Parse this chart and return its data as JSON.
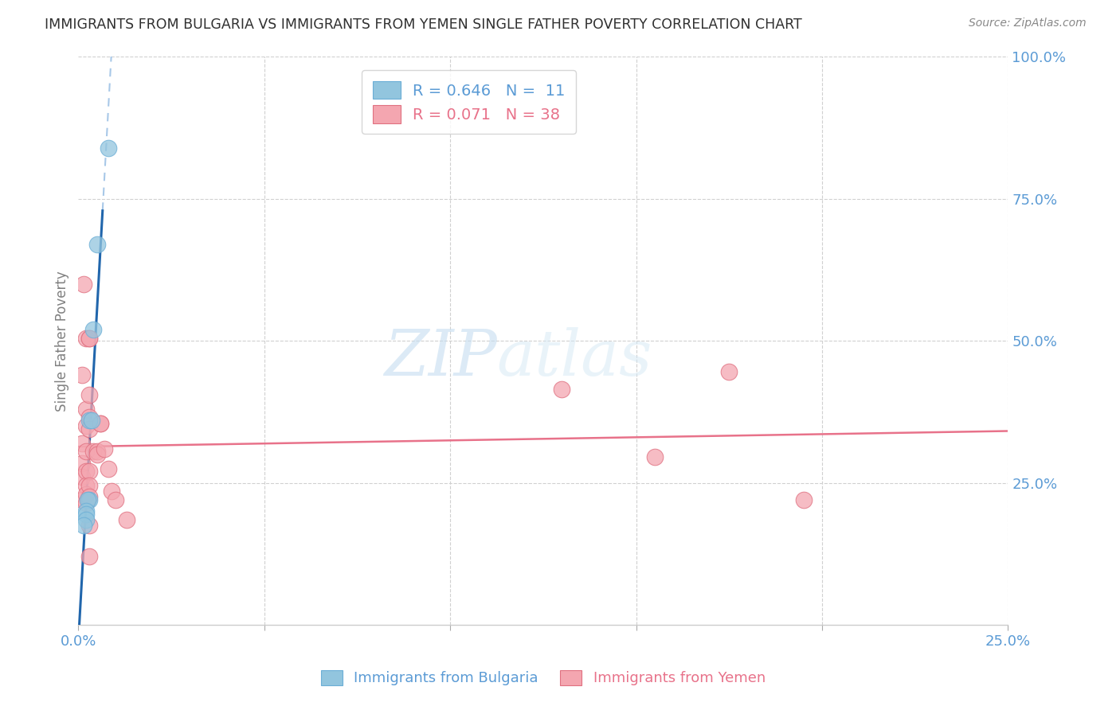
{
  "title": "IMMIGRANTS FROM BULGARIA VS IMMIGRANTS FROM YEMEN SINGLE FATHER POVERTY CORRELATION CHART",
  "source": "Source: ZipAtlas.com",
  "ylabel": "Single Father Poverty",
  "ylabel_right_labels": [
    "100.0%",
    "75.0%",
    "50.0%",
    "25.0%"
  ],
  "R_bulgaria": 0.646,
  "N_bulgaria": 11,
  "R_yemen": 0.071,
  "N_yemen": 38,
  "xlim": [
    0.0,
    0.25
  ],
  "ylim": [
    0.0,
    1.0
  ],
  "bulgaria_color": "#92c5de",
  "bulgaria_edge_color": "#6baed6",
  "yemen_color": "#f4a6b0",
  "yemen_edge_color": "#e07080",
  "bulgaria_line_color": "#2166ac",
  "yemen_line_color": "#e8728a",
  "bulgaria_dashed_color": "#a8c8e8",
  "bulgaria_scatter": [
    [
      0.008,
      0.84
    ],
    [
      0.005,
      0.67
    ],
    [
      0.004,
      0.52
    ],
    [
      0.003,
      0.36
    ],
    [
      0.0035,
      0.36
    ],
    [
      0.003,
      0.22
    ],
    [
      0.0025,
      0.22
    ],
    [
      0.002,
      0.2
    ],
    [
      0.002,
      0.195
    ],
    [
      0.002,
      0.185
    ],
    [
      0.0015,
      0.175
    ]
  ],
  "yemen_scatter": [
    [
      0.001,
      0.44
    ],
    [
      0.001,
      0.32
    ],
    [
      0.001,
      0.285
    ],
    [
      0.001,
      0.26
    ],
    [
      0.001,
      0.22
    ],
    [
      0.0015,
      0.6
    ],
    [
      0.002,
      0.505
    ],
    [
      0.002,
      0.38
    ],
    [
      0.002,
      0.35
    ],
    [
      0.002,
      0.305
    ],
    [
      0.002,
      0.27
    ],
    [
      0.002,
      0.245
    ],
    [
      0.002,
      0.23
    ],
    [
      0.002,
      0.215
    ],
    [
      0.003,
      0.505
    ],
    [
      0.003,
      0.505
    ],
    [
      0.003,
      0.405
    ],
    [
      0.003,
      0.365
    ],
    [
      0.003,
      0.345
    ],
    [
      0.003,
      0.27
    ],
    [
      0.003,
      0.245
    ],
    [
      0.003,
      0.225
    ],
    [
      0.003,
      0.175
    ],
    [
      0.003,
      0.12
    ],
    [
      0.004,
      0.305
    ],
    [
      0.005,
      0.305
    ],
    [
      0.005,
      0.3
    ],
    [
      0.006,
      0.355
    ],
    [
      0.006,
      0.355
    ],
    [
      0.007,
      0.31
    ],
    [
      0.008,
      0.275
    ],
    [
      0.009,
      0.235
    ],
    [
      0.01,
      0.22
    ],
    [
      0.013,
      0.185
    ],
    [
      0.13,
      0.415
    ],
    [
      0.155,
      0.295
    ],
    [
      0.175,
      0.445
    ],
    [
      0.195,
      0.22
    ]
  ],
  "watermark_zip": "ZIP",
  "watermark_atlas": "atlas",
  "background_color": "#ffffff",
  "grid_color": "#d0d0d0",
  "tick_label_color": "#5b9bd5",
  "title_color": "#303030",
  "axis_label_color": "#808080",
  "source_text": "Source: ZipAtlas.com"
}
